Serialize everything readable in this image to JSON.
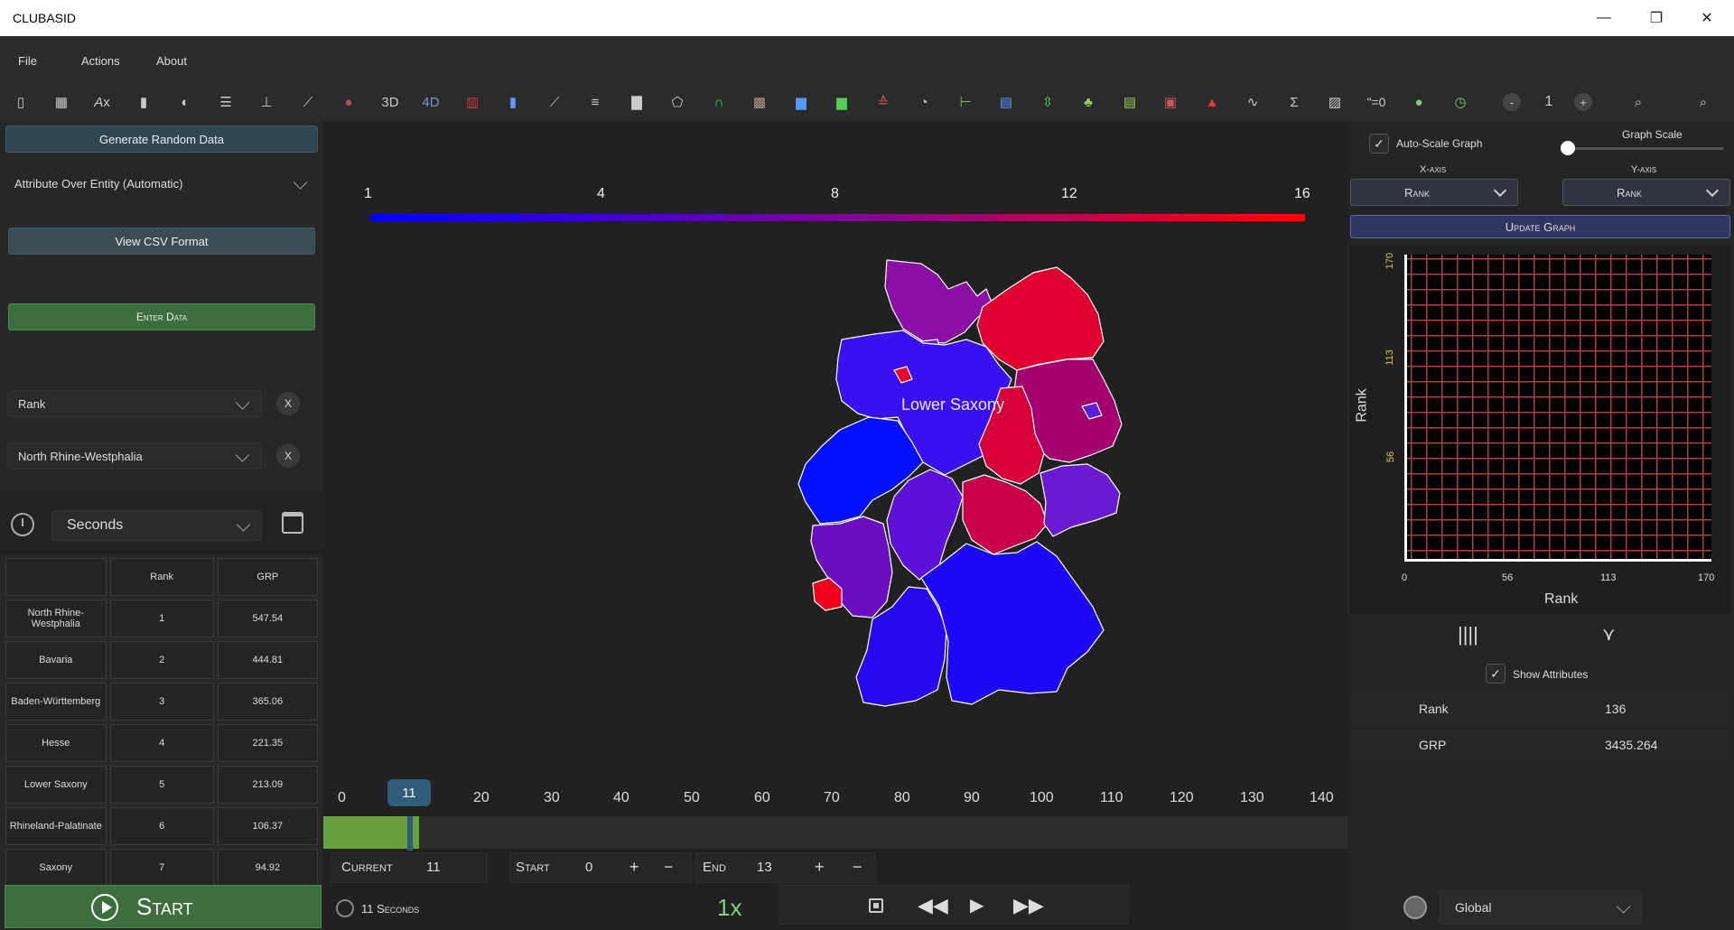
{
  "window": {
    "title": "CLUBASID",
    "minimize": "—",
    "restore": "❐",
    "close": "✕"
  },
  "menu": {
    "file": "File",
    "actions": "Actions",
    "about": "About"
  },
  "toolbar": {
    "label_3d": "3D",
    "label_4d": "4D",
    "label_eq": "\"=0",
    "zoom_minus": "-",
    "zoom_value": "1",
    "zoom_plus": "+"
  },
  "left": {
    "generate_button": "Generate Random Data",
    "mode_select": "Attribute Over Entity (Automatic)",
    "csv_button": "View CSV Format",
    "enter_button": "Enter Data",
    "attribute_select": "Rank",
    "entity_select": "North Rhine-Westphalia",
    "remove_label": "X",
    "time_unit_select": "Seconds",
    "table": {
      "headers": [
        "",
        "Rank",
        "GRP"
      ],
      "rows": [
        [
          "North Rhine-Westphalia",
          "1",
          "547.54"
        ],
        [
          "Bavaria",
          "2",
          "444.81"
        ],
        [
          "Baden-Württemberg",
          "3",
          "365.06"
        ],
        [
          "Hesse",
          "4",
          "221.35"
        ],
        [
          "Lower Saxony",
          "5",
          "213.09"
        ],
        [
          "Rhineland-Palatinate",
          "6",
          "106.37"
        ],
        [
          "Saxony",
          "7",
          "94.92"
        ]
      ]
    },
    "start_button": "Start"
  },
  "center": {
    "scale_ticks": [
      "1",
      "4",
      "8",
      "12",
      "16"
    ],
    "hover_label": "Lower Saxony",
    "colors": {
      "low": "#0000ff",
      "mid": "#8000a0",
      "high": "#ff0000",
      "stroke": "#ffffff"
    },
    "timeline": {
      "ticks": [
        "0",
        "10",
        "20",
        "30",
        "40",
        "50",
        "60",
        "70",
        "80",
        "90",
        "100",
        "110",
        "120",
        "130",
        "140"
      ],
      "current_bubble": "11",
      "progress_fraction": 0.079
    },
    "controls": {
      "current_label": "Current",
      "current_value": "11",
      "start_label": "Start",
      "start_value": "0",
      "end_label": "End",
      "end_value": "13",
      "plus": "+",
      "minus": "−",
      "elapsed": "11 Seconds",
      "speed": "1x"
    }
  },
  "right": {
    "auto_scale_label": "Auto-Scale Graph",
    "graph_scale_label": "Graph Scale",
    "x_axis_label": "X-axis",
    "y_axis_label": "Y-axis",
    "x_axis_select": "Rank",
    "y_axis_select": "Rank",
    "update_button": "Update Graph",
    "graph": {
      "ylabel": "Rank",
      "xlabel": "Rank",
      "yticks": [
        "170",
        "113",
        "56"
      ],
      "xticks": [
        "0",
        "56",
        "113",
        "170"
      ]
    },
    "show_attributes_label": "Show Attributes",
    "attributes": [
      {
        "name": "Rank",
        "value": "136"
      },
      {
        "name": "GRP",
        "value": "3435.264"
      }
    ],
    "scope_select": "Global"
  }
}
